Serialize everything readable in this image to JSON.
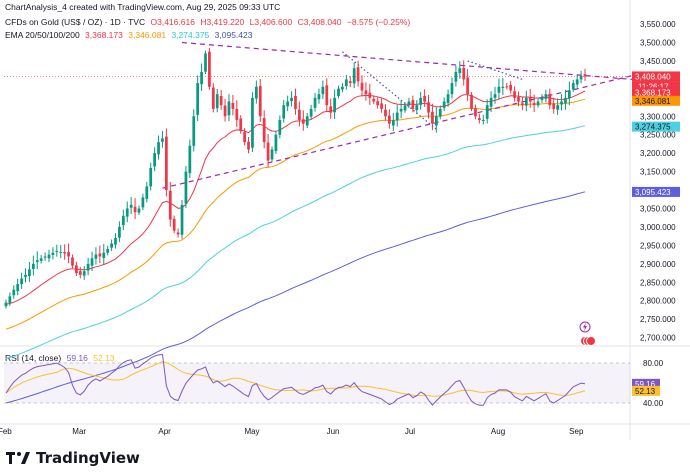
{
  "header": {
    "published_by": "ChartAnalysis_4 created with TradingView.com, Aug 29, 2025 09:33 UTC",
    "symbol": "CFDs on Gold (US$ / OZ) · 1D · TVC",
    "open": "O3,416.616",
    "high": "H3,419.220",
    "low": "L3,406.600",
    "close": "C3,408.040",
    "change": "−8.575 (−0.25%)",
    "ema_label": "EMA 20/50/100/200",
    "ema20": "3,368.173",
    "ema50": "3,346.081",
    "ema100": "3,274.375",
    "ema200": "3,095.423"
  },
  "rsi": {
    "label": "RSI (14, close)",
    "value": "59.16",
    "ma_value": "52.13"
  },
  "price_tags": {
    "last": "3,408.040",
    "countdown": "11:26:17",
    "ema20": "3,368.173",
    "ema50": "3,346.081",
    "ema100": "3,274.375",
    "ema200": "3,095.423"
  },
  "brand": {
    "name": "TradingView"
  },
  "colors": {
    "up": "#089981",
    "down": "#f23645",
    "ema20": "#f23645",
    "ema50": "#ff9800",
    "ema100": "#4dd0e1",
    "ema200": "#5b5fe0",
    "trendline": "#9c27b0",
    "rsi_line": "#7e57c2",
    "rsi_ma": "#fbc02d"
  },
  "icons": [
    "lightning-icon",
    "events-icon",
    "tradingview-logo-icon"
  ],
  "chart_data": {
    "type": "candlestick",
    "y_ticks": [
      2700,
      2750,
      2800,
      2850,
      2900,
      2950,
      3000,
      3050,
      3100,
      3150,
      3200,
      3250,
      3300,
      3350,
      3400,
      3450,
      3500,
      3550
    ],
    "y_tick_labels": [
      "2,700.000",
      "2,750.000",
      "2,800.000",
      "2,850.000",
      "2,900.000",
      "2,950.000",
      "3,000.000",
      "3,050.000",
      "3,100.000",
      "3,150.000",
      "3,200.000",
      "3,250.000",
      "3,300.000",
      "3,350.000",
      "3,400.000",
      "3,450.000",
      "3,500.000",
      "3,550.000"
    ],
    "ylim": [
      2680,
      3580
    ],
    "x_labels": [
      "Feb",
      "Mar",
      "Apr",
      "May",
      "Jun",
      "Jul",
      "Aug",
      "Sep"
    ],
    "x_label_index": [
      0,
      19,
      41,
      63,
      84,
      104,
      126,
      146
    ],
    "num_bars": 160,
    "last_bar_index": 148,
    "closes": [
      2795,
      2812,
      2830,
      2845,
      2860,
      2870,
      2885,
      2900,
      2910,
      2915,
      2920,
      2925,
      2930,
      2935,
      2932,
      2928,
      2920,
      2895,
      2875,
      2870,
      2880,
      2900,
      2915,
      2925,
      2920,
      2930,
      2940,
      2955,
      2970,
      3000,
      3030,
      3050,
      3060,
      3040,
      3050,
      3080,
      3110,
      3160,
      3200,
      3230,
      3240,
      3100,
      3020,
      2990,
      2980,
      3060,
      3150,
      3220,
      3300,
      3390,
      3420,
      3470,
      3380,
      3320,
      3360,
      3330,
      3300,
      3340,
      3320,
      3290,
      3260,
      3230,
      3210,
      3350,
      3380,
      3300,
      3230,
      3180,
      3210,
      3250,
      3290,
      3330,
      3340,
      3350,
      3320,
      3290,
      3280,
      3300,
      3320,
      3350,
      3360,
      3380,
      3330,
      3310,
      3350,
      3375,
      3380,
      3400,
      3390,
      3430,
      3395,
      3370,
      3360,
      3350,
      3340,
      3330,
      3320,
      3300,
      3280,
      3290,
      3310,
      3320,
      3330,
      3340,
      3320,
      3330,
      3350,
      3340,
      3310,
      3280,
      3300,
      3320,
      3340,
      3360,
      3390,
      3420,
      3430,
      3400,
      3360,
      3320,
      3300,
      3290,
      3290,
      3330,
      3350,
      3360,
      3380,
      3380,
      3380,
      3370,
      3350,
      3340,
      3330,
      3350,
      3340,
      3330,
      3340,
      3350,
      3360,
      3330,
      3320,
      3330,
      3340,
      3350,
      3370,
      3390,
      3400,
      3410,
      3408
    ],
    "ema_series": [
      {
        "name": "EMA 20",
        "final": 3368.173
      },
      {
        "name": "EMA 50",
        "final": 3346.081
      },
      {
        "name": "EMA 100",
        "final": 3274.375
      },
      {
        "name": "EMA 200",
        "final": 3095.423
      }
    ],
    "trendlines": [
      {
        "kind": "resistance",
        "from": [
          45,
          3500
        ],
        "to": [
          160,
          3400
        ]
      },
      {
        "kind": "support",
        "from": [
          40,
          3105
        ],
        "to": [
          160,
          3410
        ]
      },
      {
        "kind": "dotted",
        "from": [
          86,
          3475
        ],
        "to": [
          110,
          3265
        ]
      },
      {
        "kind": "dotted",
        "from": [
          118,
          3450
        ],
        "to": [
          132,
          3400
        ]
      }
    ],
    "rsi_ticks": [
      40,
      80
    ],
    "rsi_ylim": [
      25,
      95
    ],
    "rsi_last": 59.16,
    "rsi_ma_last": 52.13
  }
}
